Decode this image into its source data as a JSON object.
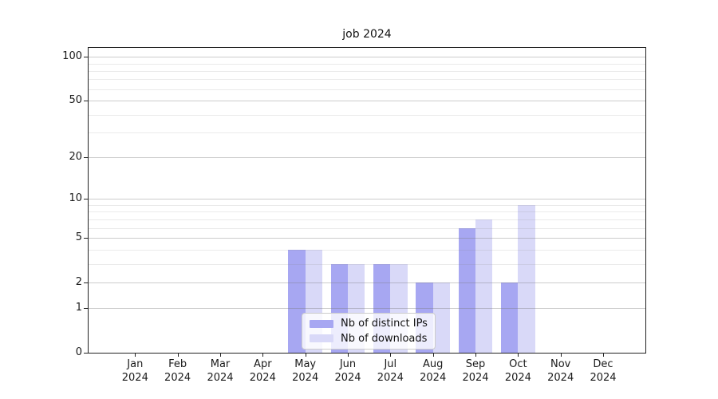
{
  "chart_data": {
    "type": "bar",
    "title": "job 2024",
    "categories": [
      "Jan",
      "Feb",
      "Mar",
      "Apr",
      "May",
      "Jun",
      "Jul",
      "Aug",
      "Sep",
      "Oct",
      "Nov",
      "Dec"
    ],
    "category_year": "2024",
    "series": [
      {
        "name": "Nb of distinct IPs",
        "color": "#a7a7f2",
        "values": [
          0,
          0,
          0,
          0,
          4,
          3,
          3,
          2,
          6,
          2,
          0,
          0
        ]
      },
      {
        "name": "Nb of downloads",
        "color": "#d9d9f8",
        "values": [
          0,
          0,
          0,
          0,
          4,
          3,
          3,
          2,
          7,
          9,
          0,
          0
        ]
      }
    ],
    "yscale": "log1p",
    "ylim": [
      0,
      115
    ],
    "y_major_ticks": [
      100,
      50,
      20,
      10,
      5,
      2,
      1,
      0
    ],
    "y_minor_gridlines": [
      3,
      4,
      6,
      7,
      8,
      9,
      30,
      40,
      60,
      70,
      80,
      90
    ],
    "grid": true,
    "legend_position": "lower-center-inside"
  },
  "colors": {
    "background": "#ffffff",
    "axis_frame": "#222222",
    "text": "#1a1a1a",
    "major_grid": "rgba(120,120,120,0.38)",
    "minor_grid": "rgba(140,140,140,0.18)",
    "legend_border": "#cccccc",
    "legend_background": "rgba(255,255,255,0.8)"
  }
}
